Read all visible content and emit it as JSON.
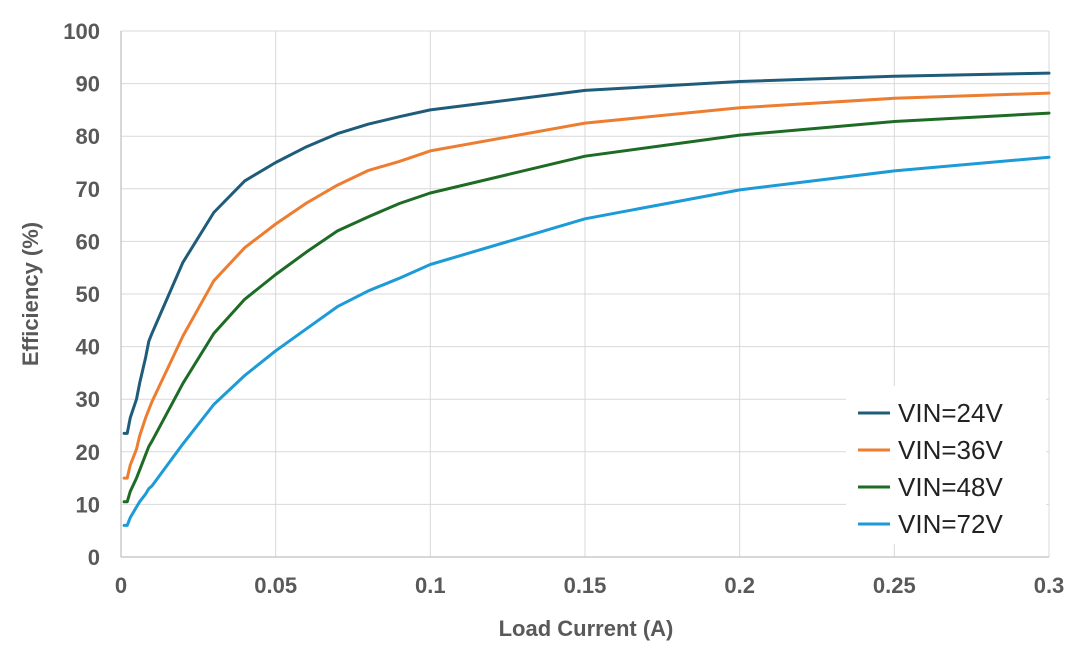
{
  "chart_data": {
    "type": "line",
    "title": "",
    "xlabel": "Load Current (A)",
    "ylabel": "Efficiency (%)",
    "xlim": [
      0,
      0.3
    ],
    "ylim": [
      0,
      100
    ],
    "x_ticks": [
      0,
      0.05,
      0.1,
      0.15,
      0.2,
      0.25,
      0.3
    ],
    "x_tick_labels": [
      "0",
      "0.05",
      "0.1",
      "0.15",
      "0.2",
      "0.25",
      "0.3"
    ],
    "y_ticks": [
      0,
      10,
      20,
      30,
      40,
      50,
      60,
      70,
      80,
      90,
      100
    ],
    "y_tick_labels": [
      "0",
      "10",
      "20",
      "30",
      "40",
      "50",
      "60",
      "70",
      "80",
      "90",
      "100"
    ],
    "grid": true,
    "legend_position": "bottom-right",
    "series": [
      {
        "name": "VIN=24V",
        "color": "#1f5c7a",
        "x": [
          0.001,
          0.002,
          0.003,
          0.005,
          0.006,
          0.008,
          0.009,
          0.01,
          0.02,
          0.03,
          0.04,
          0.05,
          0.06,
          0.07,
          0.08,
          0.09,
          0.1,
          0.15,
          0.2,
          0.25,
          0.3
        ],
        "y": [
          23.5,
          23.5,
          26.5,
          30,
          33,
          38,
          41,
          42.5,
          56,
          65.5,
          71.5,
          75,
          78,
          80.5,
          82.3,
          83.7,
          85,
          88.7,
          90.4,
          91.4,
          92
        ]
      },
      {
        "name": "VIN=36V",
        "color": "#ed7d31",
        "x": [
          0.001,
          0.002,
          0.003,
          0.005,
          0.006,
          0.008,
          0.009,
          0.01,
          0.02,
          0.03,
          0.04,
          0.05,
          0.06,
          0.07,
          0.08,
          0.09,
          0.1,
          0.15,
          0.2,
          0.25,
          0.3
        ],
        "y": [
          15,
          15,
          17.5,
          20.5,
          23,
          26.5,
          28,
          29.5,
          42,
          52.5,
          58.8,
          63.3,
          67.3,
          70.7,
          73.5,
          75.2,
          77.2,
          82.5,
          85.4,
          87.2,
          88.2
        ]
      },
      {
        "name": "VIN=48V",
        "color": "#1e6b25",
        "x": [
          0.001,
          0.002,
          0.003,
          0.005,
          0.006,
          0.008,
          0.009,
          0.01,
          0.02,
          0.03,
          0.04,
          0.05,
          0.06,
          0.07,
          0.08,
          0.09,
          0.1,
          0.15,
          0.2,
          0.25,
          0.3
        ],
        "y": [
          10.5,
          10.5,
          12.5,
          15,
          16.5,
          19.5,
          21,
          22,
          33,
          42.5,
          49,
          53.7,
          58,
          62,
          64.7,
          67.2,
          69.2,
          76.2,
          80.2,
          82.8,
          84.4
        ]
      },
      {
        "name": "VIN=72V",
        "color": "#1c9bd6",
        "x": [
          0.001,
          0.002,
          0.003,
          0.005,
          0.006,
          0.008,
          0.009,
          0.01,
          0.02,
          0.03,
          0.04,
          0.05,
          0.06,
          0.07,
          0.08,
          0.09,
          0.1,
          0.15,
          0.2,
          0.25,
          0.3
        ],
        "y": [
          6,
          6,
          7.5,
          9.5,
          10.5,
          12,
          13,
          13.5,
          21.5,
          29,
          34.5,
          39.2,
          43.4,
          47.6,
          50.6,
          53,
          55.6,
          64.3,
          69.8,
          73.4,
          76
        ]
      }
    ]
  }
}
